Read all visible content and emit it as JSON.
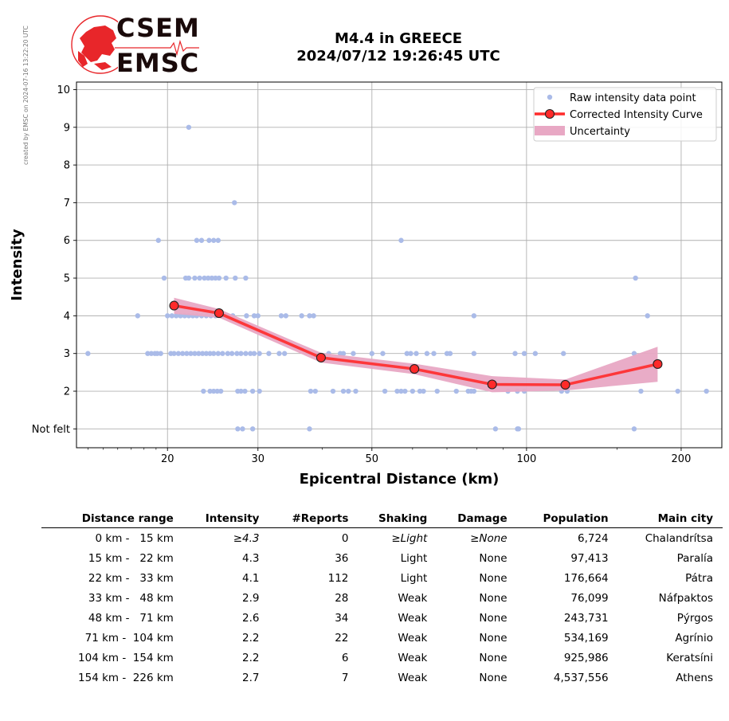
{
  "credit": "created by EMSC on 2024-07-16 13:22:20 UTC",
  "logo": {
    "line1": "CSEM",
    "line2": "EMSC",
    "accent": "#e8262a"
  },
  "chart_data": {
    "type": "scatter",
    "title": [
      "M4.4 in GREECE",
      "2024/07/12 19:26:45 UTC"
    ],
    "xlabel": "Epicentral Distance (km)",
    "ylabel": "Intensity",
    "xscale": "log",
    "xlim": [
      13.3,
      240
    ],
    "ylim": [
      0.5,
      10.2
    ],
    "x_ticks": [
      20,
      30,
      50,
      100,
      200
    ],
    "y_ticks": [
      1,
      2,
      3,
      4,
      5,
      6,
      7,
      8,
      9,
      10
    ],
    "y_tick_labels": [
      "Not felt",
      "2",
      "3",
      "4",
      "5",
      "6",
      "7",
      "8",
      "9",
      "10"
    ],
    "grid": true,
    "legend_position": "top-right",
    "legend": [
      "Raw intensity data point",
      "Corrected Intensity Curve",
      "Uncertainty"
    ],
    "colors": {
      "raw": "#aabbe8",
      "curve": "#ff2a2a",
      "marker_edge": "#222222",
      "band": "#e8a8c4"
    },
    "raw_points": [
      [
        14,
        3
      ],
      [
        17.5,
        4
      ],
      [
        18.3,
        3
      ],
      [
        18.6,
        3
      ],
      [
        18.9,
        3
      ],
      [
        19.1,
        3
      ],
      [
        19.4,
        3
      ],
      [
        19.2,
        6
      ],
      [
        19.7,
        5
      ],
      [
        20,
        4
      ],
      [
        20.4,
        4
      ],
      [
        20.8,
        4
      ],
      [
        21.2,
        4
      ],
      [
        21.6,
        4
      ],
      [
        22,
        4
      ],
      [
        22.4,
        4
      ],
      [
        22.8,
        4
      ],
      [
        23.3,
        4
      ],
      [
        23.8,
        4
      ],
      [
        24.3,
        4
      ],
      [
        24.8,
        4
      ],
      [
        20.3,
        3
      ],
      [
        20.6,
        3
      ],
      [
        21,
        3
      ],
      [
        21.4,
        3
      ],
      [
        21.8,
        3
      ],
      [
        22.2,
        3
      ],
      [
        22.6,
        3
      ],
      [
        23,
        3
      ],
      [
        23.4,
        3
      ],
      [
        23.8,
        3
      ],
      [
        24.2,
        3
      ],
      [
        24.6,
        3
      ],
      [
        25.1,
        3
      ],
      [
        25.6,
        3
      ],
      [
        26.2,
        3
      ],
      [
        26.7,
        3
      ],
      [
        27.3,
        3
      ],
      [
        27.8,
        3
      ],
      [
        28.4,
        3
      ],
      [
        29,
        3
      ],
      [
        29.5,
        3
      ],
      [
        22,
        9
      ],
      [
        22.8,
        6
      ],
      [
        23.3,
        6
      ],
      [
        24.1,
        6
      ],
      [
        24.6,
        6
      ],
      [
        25.1,
        6
      ],
      [
        21.7,
        5
      ],
      [
        22,
        5
      ],
      [
        22.6,
        5
      ],
      [
        23.1,
        5
      ],
      [
        23.6,
        5
      ],
      [
        24,
        5
      ],
      [
        24.4,
        5
      ],
      [
        24.8,
        5
      ],
      [
        25.2,
        5
      ],
      [
        26,
        5
      ],
      [
        27.1,
        5
      ],
      [
        28.4,
        5
      ],
      [
        27,
        7
      ],
      [
        23.5,
        2
      ],
      [
        24.2,
        2
      ],
      [
        24.6,
        2
      ],
      [
        25,
        2
      ],
      [
        25.4,
        2
      ],
      [
        27.4,
        2
      ],
      [
        27.8,
        2
      ],
      [
        28.3,
        2
      ],
      [
        29.3,
        2
      ],
      [
        30.2,
        2
      ],
      [
        27.4,
        1
      ],
      [
        28,
        1
      ],
      [
        29.3,
        1
      ],
      [
        37.8,
        1
      ],
      [
        25.7,
        4
      ],
      [
        26.2,
        4
      ],
      [
        26.8,
        4
      ],
      [
        28.5,
        4
      ],
      [
        29.5,
        4
      ],
      [
        30,
        4
      ],
      [
        33.3,
        4
      ],
      [
        34,
        4
      ],
      [
        36.5,
        4
      ],
      [
        37.8,
        4
      ],
      [
        38.5,
        4
      ],
      [
        30.2,
        3
      ],
      [
        31.5,
        3
      ],
      [
        33,
        3
      ],
      [
        33.8,
        3
      ],
      [
        41.2,
        3
      ],
      [
        43.4,
        3
      ],
      [
        44,
        3
      ],
      [
        46,
        3
      ],
      [
        50,
        3
      ],
      [
        52.5,
        3
      ],
      [
        58.5,
        3
      ],
      [
        59.5,
        3
      ],
      [
        61,
        3
      ],
      [
        64,
        3
      ],
      [
        66,
        3
      ],
      [
        70,
        3
      ],
      [
        71,
        3
      ],
      [
        79,
        3
      ],
      [
        95,
        3
      ],
      [
        99,
        3
      ],
      [
        104,
        3
      ],
      [
        118,
        3
      ],
      [
        162,
        3
      ],
      [
        38,
        2
      ],
      [
        38.8,
        2
      ],
      [
        42,
        2
      ],
      [
        44,
        2
      ],
      [
        45,
        2
      ],
      [
        46.5,
        2
      ],
      [
        53,
        2
      ],
      [
        56,
        2
      ],
      [
        57,
        2
      ],
      [
        58,
        2
      ],
      [
        60,
        2
      ],
      [
        62,
        2
      ],
      [
        63,
        2
      ],
      [
        67,
        2
      ],
      [
        73,
        2
      ],
      [
        77,
        2
      ],
      [
        78,
        2
      ],
      [
        79,
        2
      ],
      [
        92,
        2
      ],
      [
        96,
        2
      ],
      [
        99,
        2
      ],
      [
        117,
        2
      ],
      [
        120,
        2
      ],
      [
        167,
        2
      ],
      [
        197,
        2
      ],
      [
        224,
        2
      ],
      [
        57,
        6
      ],
      [
        79,
        4
      ],
      [
        163,
        5
      ],
      [
        172,
        4
      ],
      [
        87,
        1
      ],
      [
        96,
        1
      ],
      [
        96.5,
        1
      ],
      [
        162,
        1
      ]
    ],
    "curve": {
      "x": [
        20.6,
        25.2,
        39.8,
        60.5,
        85.7,
        119,
        180
      ],
      "y": [
        4.27,
        4.07,
        2.89,
        2.59,
        2.18,
        2.17,
        2.72
      ],
      "upper": [
        4.48,
        4.18,
        3.02,
        2.73,
        2.4,
        2.31,
        3.18
      ],
      "lower": [
        4.05,
        3.95,
        2.76,
        2.45,
        1.97,
        2.02,
        2.25
      ]
    }
  },
  "table": {
    "headers": [
      "Distance range",
      "Intensity",
      "#Reports",
      "Shaking",
      "Damage",
      "Population",
      "Main city"
    ],
    "rows": [
      [
        "0 km -   15 km",
        "≥4.3",
        "0",
        "≥Light",
        "≥None",
        "6,724",
        "Chalandrítsa"
      ],
      [
        "15 km -   22 km",
        "4.3",
        "36",
        "Light",
        "None",
        "97,413",
        "Paralía"
      ],
      [
        "22 km -   33 km",
        "4.1",
        "112",
        "Light",
        "None",
        "176,664",
        "Pátra"
      ],
      [
        "33 km -   48 km",
        "2.9",
        "28",
        "Weak",
        "None",
        "76,099",
        "Náfpaktos"
      ],
      [
        "48 km -   71 km",
        "2.6",
        "34",
        "Weak",
        "None",
        "243,731",
        "Pýrgos"
      ],
      [
        "71 km -  104 km",
        "2.2",
        "22",
        "Weak",
        "None",
        "534,169",
        "Agrínio"
      ],
      [
        "104 km -  154 km",
        "2.2",
        "6",
        "Weak",
        "None",
        "925,986",
        "Keratsíni"
      ],
      [
        "154 km -  226 km",
        "2.7",
        "7",
        "Weak",
        "None",
        "4,537,556",
        "Athens"
      ]
    ]
  }
}
